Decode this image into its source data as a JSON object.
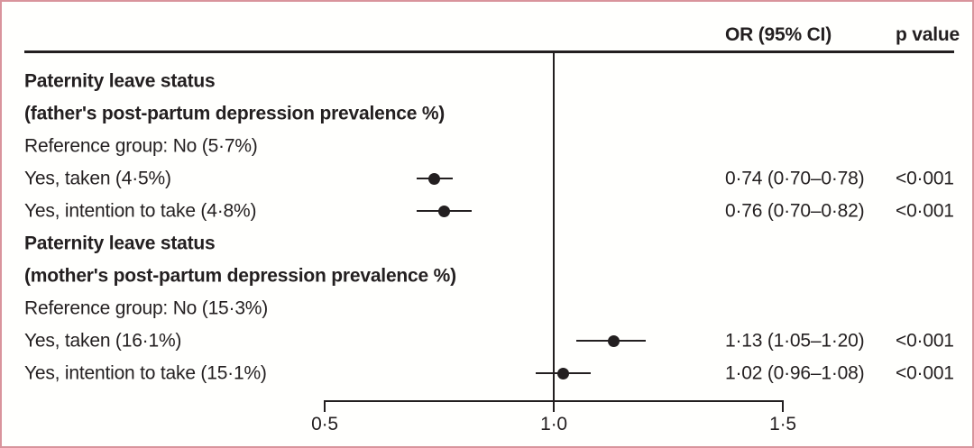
{
  "colors": {
    "border": "#d9949c",
    "text": "#231f20",
    "line": "#231f20",
    "marker": "#231f20",
    "background": "#fffffd"
  },
  "header": {
    "or_column_label": "OR (95% CI)",
    "p_column_label": "p value"
  },
  "axis": {
    "min": 0.5,
    "max": 1.5,
    "tick_values": [
      0.5,
      1.0,
      1.5
    ],
    "tick_labels": [
      "0·5",
      "1·0",
      "1·5"
    ],
    "reference_line": 1.0
  },
  "rows": [
    {
      "type": "heading",
      "label": "Paternity leave status"
    },
    {
      "type": "heading",
      "label": "(father's post-partum depression prevalence %)"
    },
    {
      "type": "text",
      "label": "Reference group: No (5·7%)"
    },
    {
      "type": "data",
      "label": "Yes, taken (4·5%)",
      "or": 0.74,
      "ci_low": 0.7,
      "ci_high": 0.78,
      "or_ci_text": "0·74 (0·70–0·78)",
      "p_text": "<0·001"
    },
    {
      "type": "data",
      "label": "Yes, intention to take (4·8%)",
      "or": 0.76,
      "ci_low": 0.7,
      "ci_high": 0.82,
      "or_ci_text": "0·76 (0·70–0·82)",
      "p_text": "<0·001"
    },
    {
      "type": "heading",
      "label": "Paternity leave status"
    },
    {
      "type": "heading",
      "label": "(mother's post-partum depression prevalence %)"
    },
    {
      "type": "text",
      "label": "Reference group: No (15·3%)"
    },
    {
      "type": "data",
      "label": "Yes, taken (16·1%)",
      "or": 1.13,
      "ci_low": 1.05,
      "ci_high": 1.2,
      "or_ci_text": "1·13 (1·05–1·20)",
      "p_text": "<0·001"
    },
    {
      "type": "data",
      "label": "Yes, intention to take (15·1%)",
      "or": 1.02,
      "ci_low": 0.96,
      "ci_high": 1.08,
      "or_ci_text": "1·02 (0·96–1·08)",
      "p_text": "<0·001"
    }
  ],
  "chart_data": {
    "type": "scatter",
    "subtype": "forest-plot",
    "title": "",
    "xlabel": "",
    "xlim": [
      0.5,
      1.5
    ],
    "x_ticks": [
      0.5,
      1.0,
      1.5
    ],
    "x_tick_labels": [
      "0·5",
      "1·0",
      "1·5"
    ],
    "reference_line_x": 1.0,
    "grid": false,
    "columns": [
      "OR (95% CI)",
      "p value"
    ],
    "groups": [
      {
        "heading": "Paternity leave status (father's post-partum depression prevalence %)",
        "reference_group": "Reference group: No (5·7%)",
        "points": [
          {
            "label": "Yes, taken (4·5%)",
            "or": 0.74,
            "ci": [
              0.7,
              0.78
            ],
            "or_ci_text": "0·74 (0·70–0·78)",
            "p_value": "<0·001"
          },
          {
            "label": "Yes, intention to take (4·8%)",
            "or": 0.76,
            "ci": [
              0.7,
              0.82
            ],
            "or_ci_text": "0·76 (0·70–0·82)",
            "p_value": "<0·001"
          }
        ]
      },
      {
        "heading": "Paternity leave status (mother's post-partum depression prevalence %)",
        "reference_group": "Reference group: No (15·3%)",
        "points": [
          {
            "label": "Yes, taken (16·1%)",
            "or": 1.13,
            "ci": [
              1.05,
              1.2
            ],
            "or_ci_text": "1·13 (1·05–1·20)",
            "p_value": "<0·001"
          },
          {
            "label": "Yes, intention to take (15·1%)",
            "or": 1.02,
            "ci": [
              0.96,
              1.08
            ],
            "or_ci_text": "1·02 (0·96–1·08)",
            "p_value": "<0·001"
          }
        ]
      }
    ]
  }
}
